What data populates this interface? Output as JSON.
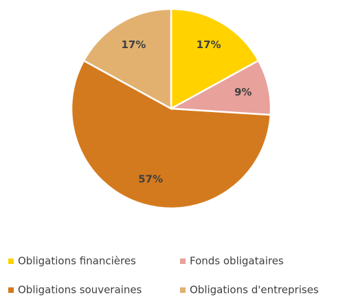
{
  "chart_data": {
    "type": "pie",
    "categories": [
      "Obligations financières",
      "Fonds obligataires",
      "Obligations souveraines",
      "Obligations d'entreprises"
    ],
    "values": [
      17,
      9,
      57,
      17
    ],
    "value_labels": [
      "17%",
      "9%",
      "57%",
      "17%"
    ],
    "colors": [
      "#FFD200",
      "#E8A19B",
      "#D47A1E",
      "#E2B16F"
    ],
    "legend": "bottom"
  }
}
